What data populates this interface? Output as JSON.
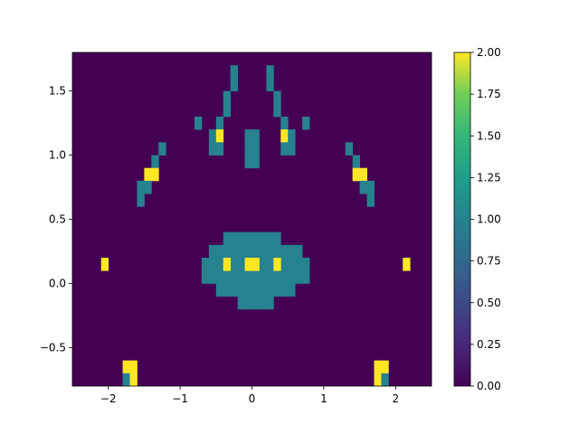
{
  "chart_data": {
    "type": "heatmap",
    "colormap": "viridis",
    "grid": false,
    "legend": "colorbar-right",
    "xlim": [
      -2.5,
      2.5
    ],
    "ylim": [
      -0.8,
      1.8
    ],
    "x_ticks": [
      -2,
      -1,
      0,
      1,
      2
    ],
    "x_tick_labels": [
      "−2",
      "−1",
      "0",
      "1",
      "2"
    ],
    "y_ticks": [
      -0.5,
      0.0,
      0.5,
      1.0,
      1.5
    ],
    "y_tick_labels": [
      "−0.5",
      "0.0",
      "0.5",
      "1.0",
      "1.5"
    ],
    "colorbar": {
      "range": [
        0.0,
        2.0
      ],
      "ticks": [
        0.0,
        0.25,
        0.5,
        0.75,
        1.0,
        1.25,
        1.5,
        1.75,
        2.0
      ],
      "tick_labels": [
        "0.00",
        "0.25",
        "0.50",
        "0.75",
        "1.00",
        "1.25",
        "1.50",
        "1.75",
        "2.00"
      ]
    },
    "cell_size": [
      0.1,
      0.1
    ],
    "background_value": 0,
    "cells": [
      {
        "x": -0.25,
        "y": 1.65,
        "v": 1
      },
      {
        "x": -0.25,
        "y": 1.55,
        "v": 1
      },
      {
        "x": 0.25,
        "y": 1.65,
        "v": 1
      },
      {
        "x": 0.25,
        "y": 1.55,
        "v": 1
      },
      {
        "x": -0.35,
        "y": 1.45,
        "v": 1
      },
      {
        "x": -0.35,
        "y": 1.35,
        "v": 1
      },
      {
        "x": 0.35,
        "y": 1.45,
        "v": 1
      },
      {
        "x": 0.35,
        "y": 1.35,
        "v": 1
      },
      {
        "x": -0.75,
        "y": 1.25,
        "v": 1
      },
      {
        "x": -0.45,
        "y": 1.25,
        "v": 1
      },
      {
        "x": -0.55,
        "y": 1.15,
        "v": 1
      },
      {
        "x": -0.45,
        "y": 1.15,
        "v": 2
      },
      {
        "x": -0.55,
        "y": 1.05,
        "v": 1
      },
      {
        "x": -0.45,
        "y": 1.05,
        "v": 1
      },
      {
        "x": 0.75,
        "y": 1.25,
        "v": 1
      },
      {
        "x": 0.45,
        "y": 1.25,
        "v": 1
      },
      {
        "x": 0.45,
        "y": 1.15,
        "v": 2
      },
      {
        "x": 0.55,
        "y": 1.15,
        "v": 1
      },
      {
        "x": 0.45,
        "y": 1.05,
        "v": 1
      },
      {
        "x": 0.55,
        "y": 1.05,
        "v": 1
      },
      {
        "x": -0.05,
        "y": 1.15,
        "v": 1
      },
      {
        "x": 0.05,
        "y": 1.15,
        "v": 1
      },
      {
        "x": -0.05,
        "y": 1.05,
        "v": 1
      },
      {
        "x": 0.05,
        "y": 1.05,
        "v": 1
      },
      {
        "x": -0.05,
        "y": 0.95,
        "v": 1
      },
      {
        "x": 0.05,
        "y": 0.95,
        "v": 1
      },
      {
        "x": -1.25,
        "y": 1.05,
        "v": 1
      },
      {
        "x": -1.35,
        "y": 0.95,
        "v": 1
      },
      {
        "x": -1.45,
        "y": 0.85,
        "v": 2
      },
      {
        "x": -1.35,
        "y": 0.85,
        "v": 2
      },
      {
        "x": -1.55,
        "y": 0.75,
        "v": 1
      },
      {
        "x": -1.45,
        "y": 0.75,
        "v": 1
      },
      {
        "x": -1.55,
        "y": 0.65,
        "v": 1
      },
      {
        "x": 1.35,
        "y": 1.05,
        "v": 1
      },
      {
        "x": 1.45,
        "y": 0.95,
        "v": 1
      },
      {
        "x": 1.45,
        "y": 0.85,
        "v": 2
      },
      {
        "x": 1.55,
        "y": 0.85,
        "v": 2
      },
      {
        "x": 1.55,
        "y": 0.75,
        "v": 1
      },
      {
        "x": 1.65,
        "y": 0.75,
        "v": 1
      },
      {
        "x": 1.65,
        "y": 0.65,
        "v": 1
      },
      {
        "x": -2.05,
        "y": 0.15,
        "v": 2
      },
      {
        "x": 2.15,
        "y": 0.15,
        "v": 2
      },
      {
        "x": -0.35,
        "y": 0.15,
        "v": 2
      },
      {
        "x": -0.05,
        "y": 0.15,
        "v": 2
      },
      {
        "x": 0.05,
        "y": 0.15,
        "v": 2
      },
      {
        "x": 0.35,
        "y": 0.15,
        "v": 2
      },
      {
        "x": -1.75,
        "y": -0.65,
        "v": 2
      },
      {
        "x": -1.65,
        "y": -0.65,
        "v": 2
      },
      {
        "x": -1.75,
        "y": -0.75,
        "v": 1
      },
      {
        "x": -1.65,
        "y": -0.75,
        "v": 2
      },
      {
        "x": -1.75,
        "y": -0.85,
        "v": 2
      },
      {
        "x": -1.65,
        "y": -0.85,
        "v": 1
      },
      {
        "x": 1.75,
        "y": -0.65,
        "v": 2
      },
      {
        "x": 1.85,
        "y": -0.65,
        "v": 2
      },
      {
        "x": 1.75,
        "y": -0.75,
        "v": 2
      },
      {
        "x": 1.85,
        "y": -0.75,
        "v": 1
      },
      {
        "x": 1.75,
        "y": -0.85,
        "v": 1
      },
      {
        "x": 1.85,
        "y": -0.85,
        "v": 2
      }
    ],
    "runs": [
      {
        "y": 0.35,
        "x0": -0.35,
        "x1": 0.35,
        "v": 1
      },
      {
        "y": 0.25,
        "x0": -0.55,
        "x1": 0.65,
        "v": 1
      },
      {
        "y": 0.15,
        "x0": -0.65,
        "x1": 0.75,
        "v": 1
      },
      {
        "y": 0.05,
        "x0": -0.65,
        "x1": 0.75,
        "v": 1
      },
      {
        "y": -0.05,
        "x0": -0.45,
        "x1": 0.55,
        "v": 1
      },
      {
        "y": -0.15,
        "x0": -0.15,
        "x1": 0.25,
        "v": 1
      }
    ]
  }
}
